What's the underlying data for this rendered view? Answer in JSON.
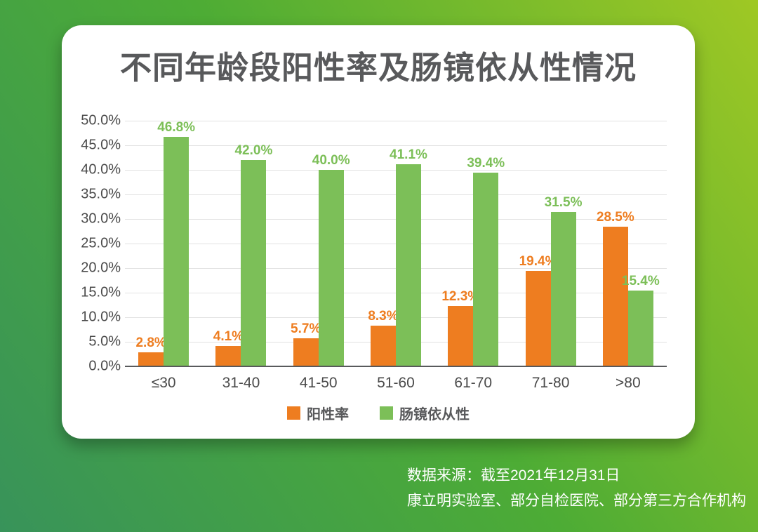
{
  "page": {
    "background_gradient": [
      "#38935A",
      "#4DAC35",
      "#9FC824"
    ],
    "card_color": "#FFFFFF"
  },
  "chart_data": {
    "type": "bar",
    "title": "不同年龄段阳性率及肠镜依从性情况",
    "title_color": "#58595B",
    "categories": [
      "≤30",
      "31-40",
      "41-50",
      "51-60",
      "61-70",
      "71-80",
      ">80"
    ],
    "series": [
      {
        "name": "阳性率",
        "color": "#EE7D20",
        "values": [
          2.8,
          4.1,
          5.7,
          8.3,
          12.3,
          19.4,
          28.5
        ]
      },
      {
        "name": "肠镜依从性",
        "color": "#7CBF58",
        "values": [
          46.8,
          42.0,
          40.0,
          41.1,
          39.4,
          31.5,
          15.4
        ]
      }
    ],
    "xlabel": "",
    "ylabel": "",
    "ylim": [
      0,
      50
    ],
    "ytick_step": 5,
    "ytick_format": "percent_1dp",
    "value_label_format": "percent_1dp",
    "grid": true,
    "gridline_color": "#E2E2E2",
    "axis_line_color": "#595A5C",
    "axis_text_color": "#4A4A4A",
    "legend_position": "bottom"
  },
  "footer": {
    "line1": "数据来源：截至2021年12月31日",
    "line2": "康立明实验室、部分自检医院、部分第三方合作机构",
    "text_color": "#FFFFFF"
  }
}
